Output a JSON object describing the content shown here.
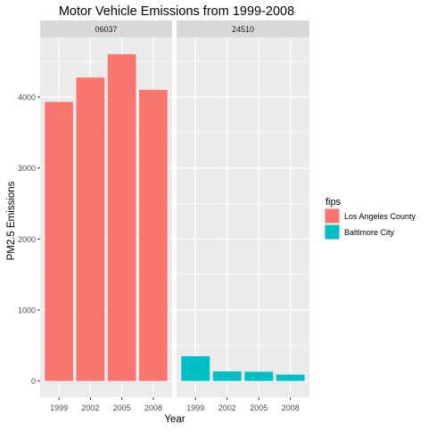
{
  "chart_data": {
    "type": "bar",
    "title": "Motor Vehicle Emissions from 1999-2008",
    "xlabel": "Year",
    "ylabel": "PM2.5 Emissions",
    "ylim": [
      -230,
      4840
    ],
    "yticks": [
      0,
      1000,
      2000,
      3000,
      4000
    ],
    "grid": true,
    "legend": {
      "title": "fips",
      "position": "right",
      "entries": [
        {
          "label": "Los Angeles County",
          "color": "#F8766D"
        },
        {
          "label": "Baltimore City",
          "color": "#00BFC4"
        }
      ]
    },
    "categories": [
      "1999",
      "2002",
      "2005",
      "2008"
    ],
    "facets": [
      {
        "strip": "06037",
        "series": "Los Angeles County",
        "color": "#F8766D",
        "values": [
          3931,
          4274,
          4602,
          4101
        ]
      },
      {
        "strip": "24510",
        "series": "Baltimore City",
        "color": "#00BFC4",
        "values": [
          347,
          134,
          130,
          89
        ]
      }
    ],
    "colors": {
      "panel_bg": "#EBEBEB",
      "grid": "#FFFFFF",
      "strip_bg": "#D9D9D9"
    }
  }
}
